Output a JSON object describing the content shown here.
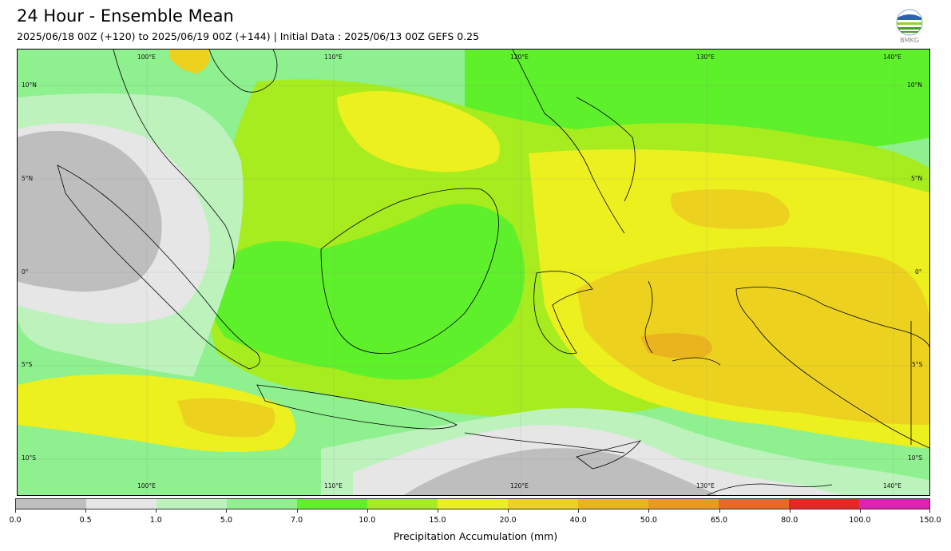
{
  "header": {
    "title": "24 Hour - Ensemble Mean",
    "subtitle": "2025/06/18 00Z (+120) to 2025/06/19 00Z (+144) | Initial Data : 2025/06/13 00Z GEFS 0.25",
    "logo_text": "BMKG"
  },
  "map": {
    "lon_labels_top": [
      "100°E",
      "110°E",
      "120°E",
      "130°E",
      "140°E"
    ],
    "lon_labels_bottom": [
      "100°E",
      "110°E",
      "120°E",
      "130°E",
      "140°E"
    ],
    "lat_labels_left": [
      "10°N",
      "5°N",
      "0°",
      "5°S",
      "10°S"
    ],
    "lat_labels_right": [
      "10°N",
      "5°N",
      "0°",
      "5°S",
      "10°S"
    ]
  },
  "colorbar": {
    "label": "Precipitation Accumulation (mm)",
    "ticks": [
      "0.0",
      "0.5",
      "1.0",
      "5.0",
      "7.0",
      "10.0",
      "15.0",
      "20.0",
      "40.0",
      "50.0",
      "65.0",
      "80.0",
      "100.0",
      "150.0"
    ],
    "colors": [
      "#bebebe",
      "#e6e6e6",
      "#bdf2bd",
      "#8ef08e",
      "#5ef02a",
      "#a6ec1e",
      "#ecf01e",
      "#ecd21e",
      "#eab41e",
      "#ea9a1e",
      "#ea6a24",
      "#ea2424",
      "#e41eb4"
    ]
  }
}
